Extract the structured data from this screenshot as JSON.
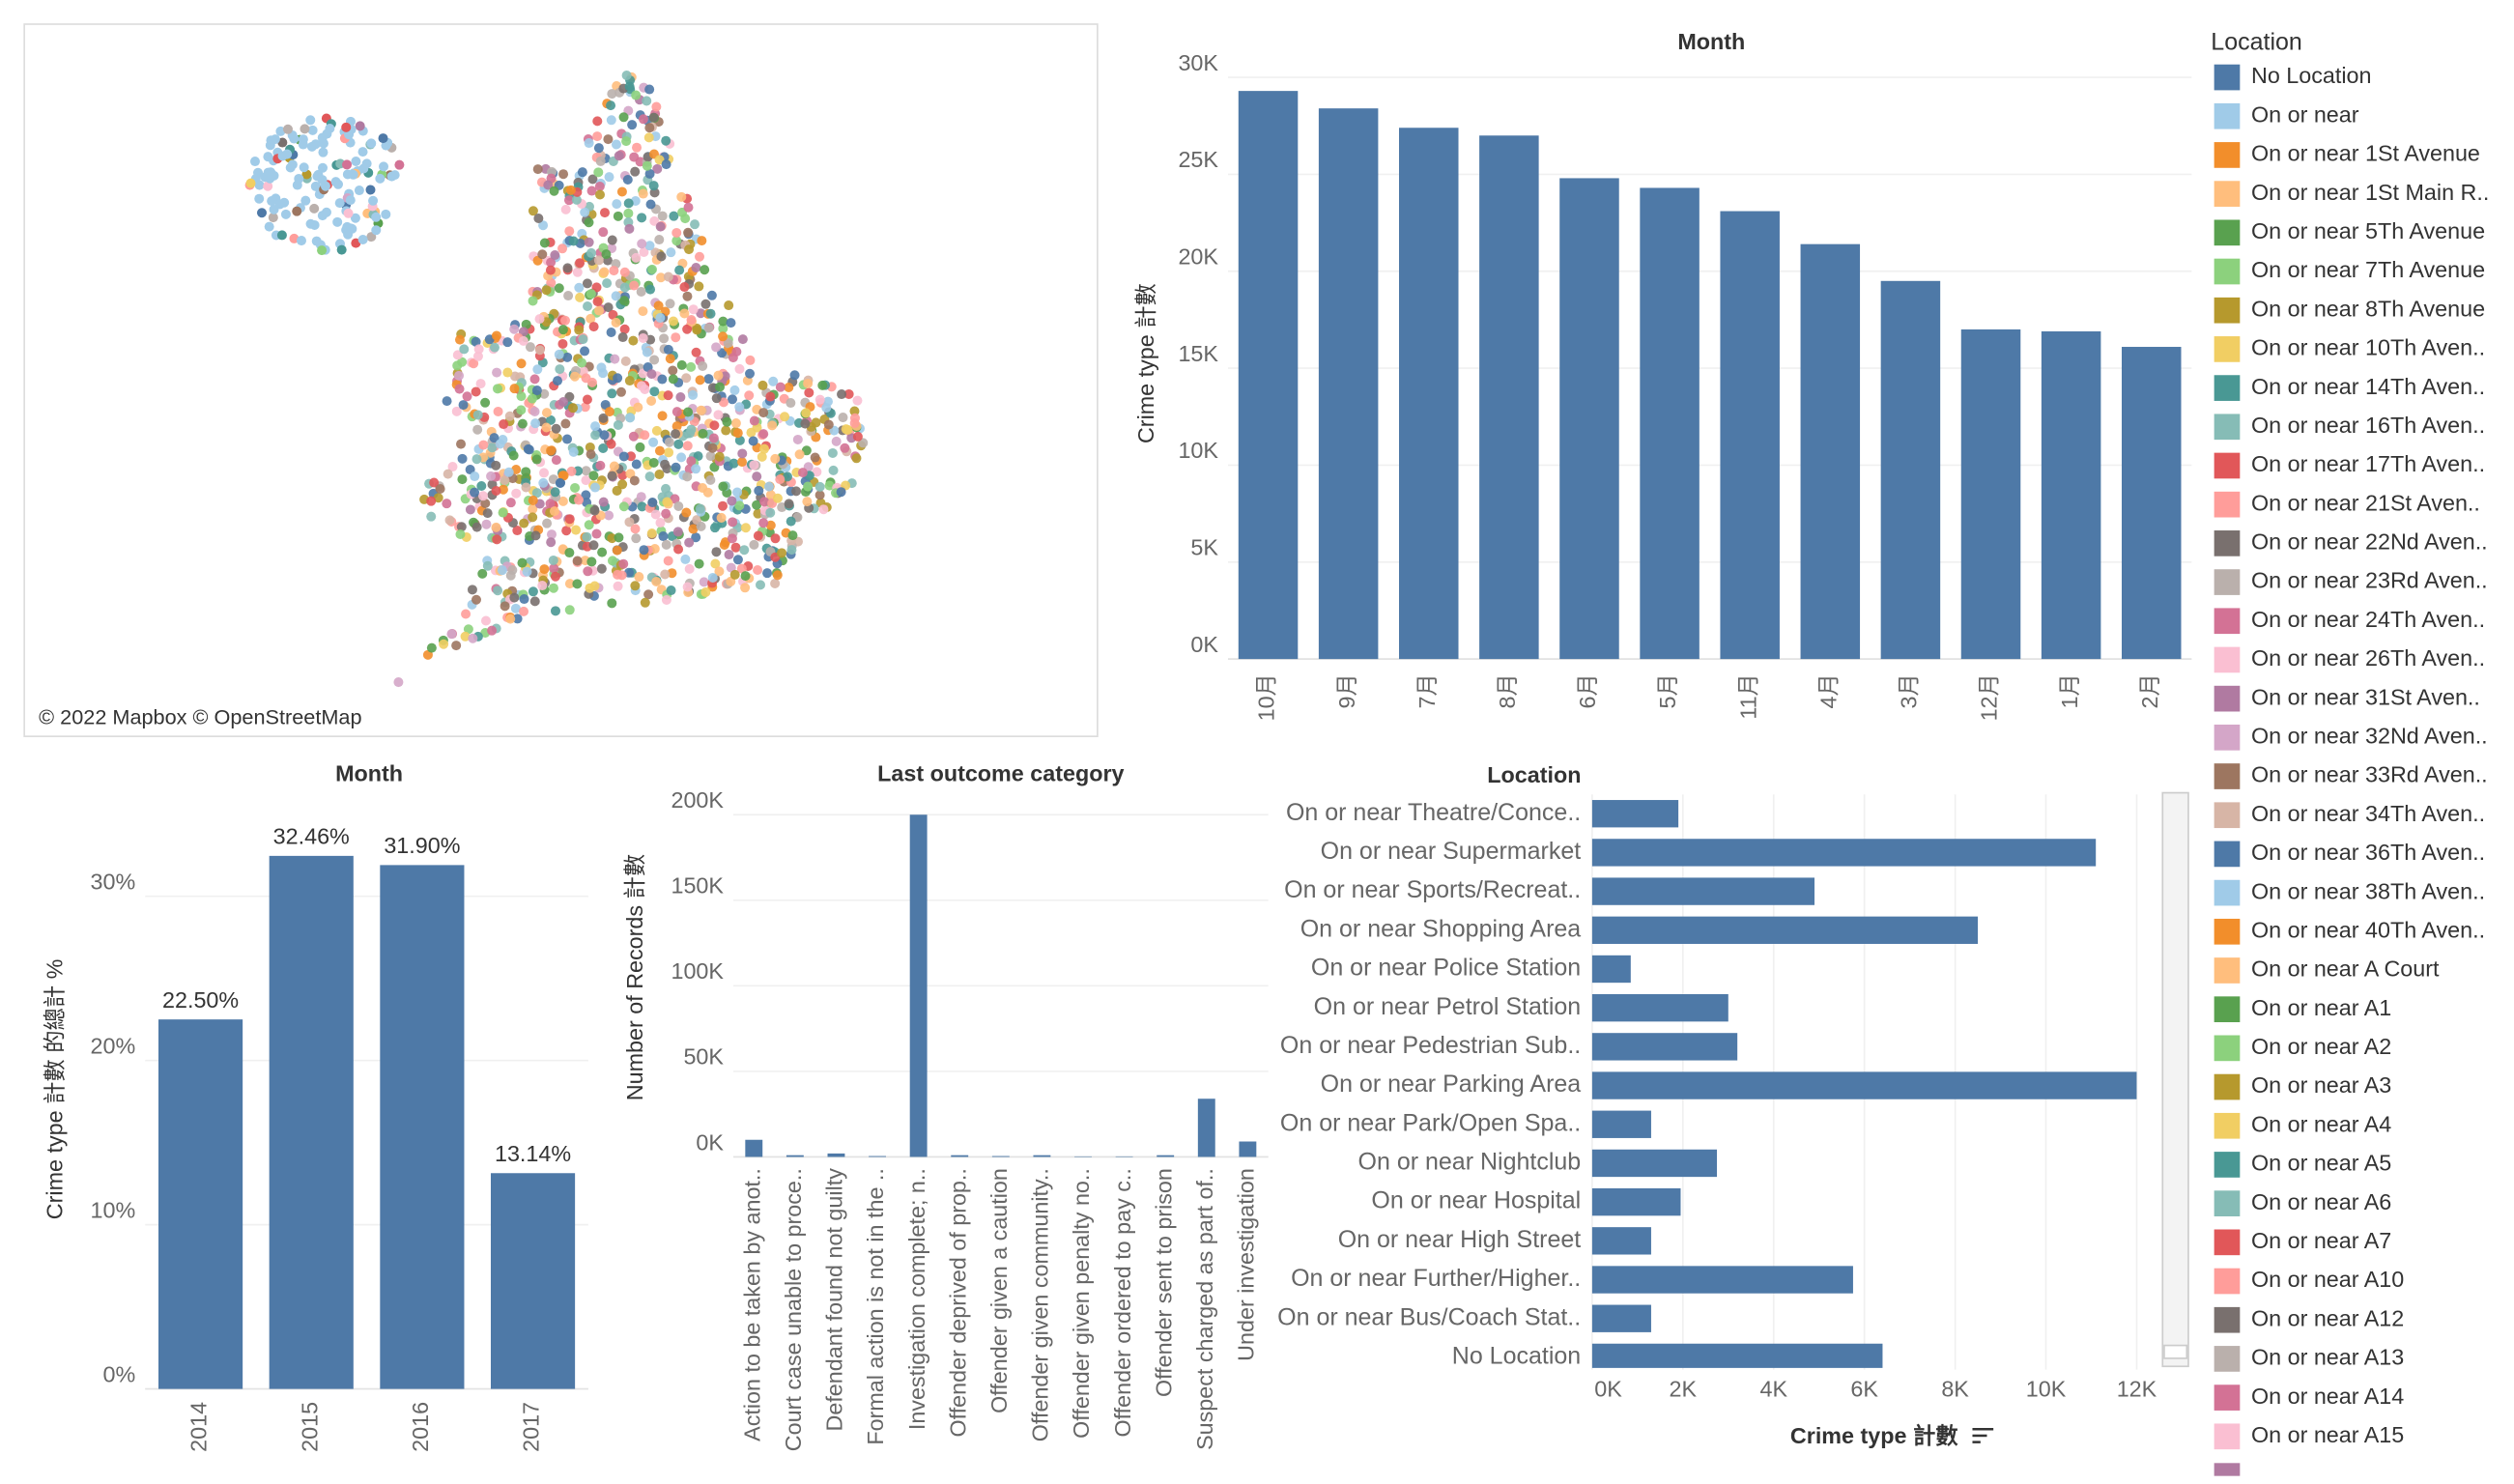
{
  "map": {
    "attribution": "© 2022 Mapbox © OpenStreetMap"
  },
  "legend": {
    "title": "Location",
    "items": [
      {
        "name": "No Location",
        "color": "#4e79a7"
      },
      {
        "name": "On or near",
        "color": "#a0cbe8"
      },
      {
        "name": "On or near 1St Avenue",
        "color": "#f28e2b"
      },
      {
        "name": "On or near 1St Main R..",
        "color": "#ffbe7d"
      },
      {
        "name": "On or near 5Th Avenue",
        "color": "#59a14f"
      },
      {
        "name": "On or near 7Th Avenue",
        "color": "#8cd17d"
      },
      {
        "name": "On or near 8Th Avenue",
        "color": "#b6992d"
      },
      {
        "name": "On or near 10Th Aven..",
        "color": "#f1ce63"
      },
      {
        "name": "On or near 14Th Aven..",
        "color": "#499894"
      },
      {
        "name": "On or near 16Th Aven..",
        "color": "#86bcb6"
      },
      {
        "name": "On or near 17Th Aven..",
        "color": "#e15759"
      },
      {
        "name": "On or near 21St Aven..",
        "color": "#ff9d9a"
      },
      {
        "name": "On or near 22Nd Aven..",
        "color": "#79706e"
      },
      {
        "name": "On or near 23Rd Aven..",
        "color": "#bab0ac"
      },
      {
        "name": "On or near 24Th Aven..",
        "color": "#d37295"
      },
      {
        "name": "On or near 26Th Aven..",
        "color": "#fabfd2"
      },
      {
        "name": "On or near 31St Aven..",
        "color": "#b07aa1"
      },
      {
        "name": "On or near 32Nd Aven..",
        "color": "#d4a6c8"
      },
      {
        "name": "On or near 33Rd Aven..",
        "color": "#9d7660"
      },
      {
        "name": "On or near 34Th Aven..",
        "color": "#d7b5a6"
      },
      {
        "name": "On or near 36Th Aven..",
        "color": "#4e79a7"
      },
      {
        "name": "On or near 38Th Aven..",
        "color": "#a0cbe8"
      },
      {
        "name": "On or near 40Th Aven..",
        "color": "#f28e2b"
      },
      {
        "name": "On or near A Court",
        "color": "#ffbe7d"
      },
      {
        "name": "On or near A1",
        "color": "#59a14f"
      },
      {
        "name": "On or near A2",
        "color": "#8cd17d"
      },
      {
        "name": "On or near A3",
        "color": "#b6992d"
      },
      {
        "name": "On or near A4",
        "color": "#f1ce63"
      },
      {
        "name": "On or near A5",
        "color": "#499894"
      },
      {
        "name": "On or near A6",
        "color": "#86bcb6"
      },
      {
        "name": "On or near A7",
        "color": "#e15759"
      },
      {
        "name": "On or near A10",
        "color": "#ff9d9a"
      },
      {
        "name": "On or near A12",
        "color": "#79706e"
      },
      {
        "name": "On or near A13",
        "color": "#bab0ac"
      },
      {
        "name": "On or near A14",
        "color": "#d37295"
      },
      {
        "name": "On or near A15",
        "color": "#fabfd2"
      }
    ]
  },
  "chart_data": [
    {
      "type": "bar",
      "title": "Month",
      "y_label": "Crime type 計數",
      "color": "#4e79a7",
      "categories": [
        "10月",
        "9月",
        "7月",
        "8月",
        "6月",
        "5月",
        "11月",
        "4月",
        "3月",
        "12月",
        "1月",
        "2月"
      ],
      "values": [
        29300,
        28400,
        27400,
        27000,
        24800,
        24300,
        23100,
        21400,
        19500,
        17000,
        16900,
        16100
      ],
      "ylim": [
        0,
        30500
      ],
      "yticks": [
        {
          "value": 0,
          "label": "0K"
        },
        {
          "value": 5000,
          "label": "5K"
        },
        {
          "value": 10000,
          "label": "10K"
        },
        {
          "value": 15000,
          "label": "15K"
        },
        {
          "value": 20000,
          "label": "20K"
        },
        {
          "value": 25000,
          "label": "25K"
        },
        {
          "value": 30000,
          "label": "30K"
        }
      ],
      "grid": true
    },
    {
      "type": "bar",
      "title": "Month",
      "y_label": "Crime type 計數 的總計 %",
      "color": "#4e79a7",
      "categories": [
        "2014",
        "2015",
        "2016",
        "2017"
      ],
      "values": [
        22.5,
        32.46,
        31.9,
        13.14
      ],
      "value_labels": [
        "22.50%",
        "32.46%",
        "31.90%",
        "13.14%"
      ],
      "ylim": [
        0,
        36.5
      ],
      "yticks": [
        {
          "value": 0,
          "label": "0%"
        },
        {
          "value": 10,
          "label": "10%"
        },
        {
          "value": 20,
          "label": "20%"
        },
        {
          "value": 30,
          "label": "30%"
        }
      ],
      "grid": true
    },
    {
      "type": "bar",
      "title": "Last outcome category",
      "y_label": "Number of Records 計數",
      "color": "#4e79a7",
      "categories": [
        "Action to be taken by anot..",
        "Court case unable to proce..",
        "Defendant found not guilty",
        "Formal action is not in the ..",
        "Investigation complete; n..",
        "Offender deprived of prop..",
        "Offender given a caution",
        "Offender given community..",
        "Offender given penalty no..",
        "Offender ordered to pay c..",
        "Offender sent to prison",
        "Suspect charged as part of..",
        "Under investigation"
      ],
      "values": [
        10000,
        1000,
        2000,
        500,
        200000,
        1000,
        500,
        1000,
        300,
        300,
        1000,
        34000,
        9000
      ],
      "ylim": [
        0,
        210000
      ],
      "yticks": [
        {
          "value": 0,
          "label": "0K"
        },
        {
          "value": 50000,
          "label": "50K"
        },
        {
          "value": 100000,
          "label": "100K"
        },
        {
          "value": 150000,
          "label": "150K"
        },
        {
          "value": 200000,
          "label": "200K"
        }
      ],
      "grid": true
    },
    {
      "type": "barh",
      "title": "Location",
      "x_label": "Crime type 計數",
      "color": "#4e79a7",
      "categories": [
        "On or near Theatre/Conce..",
        "On or near Supermarket",
        "On or near Sports/Recreat..",
        "On or near Shopping Area",
        "On or near Police Station",
        "On or near Petrol Station",
        "On or near Pedestrian Sub..",
        "On or near Parking Area",
        "On or near Park/Open Spa..",
        "On or near Nightclub",
        "On or near Hospital",
        "On or near High Street",
        "On or near Further/Higher..",
        "On or near Bus/Coach Stat..",
        "No Location"
      ],
      "values": [
        1900,
        11100,
        4900,
        8500,
        850,
        3000,
        3200,
        12000,
        1300,
        2750,
        1950,
        1300,
        5750,
        1300,
        6400
      ],
      "xlim": [
        0,
        12500
      ],
      "xticks": [
        {
          "value": 0,
          "label": "0K"
        },
        {
          "value": 2000,
          "label": "2K"
        },
        {
          "value": 4000,
          "label": "4K"
        },
        {
          "value": 6000,
          "label": "6K"
        },
        {
          "value": 8000,
          "label": "8K"
        },
        {
          "value": 10000,
          "label": "10K"
        },
        {
          "value": 12000,
          "label": "12K"
        }
      ],
      "grid": true
    }
  ]
}
